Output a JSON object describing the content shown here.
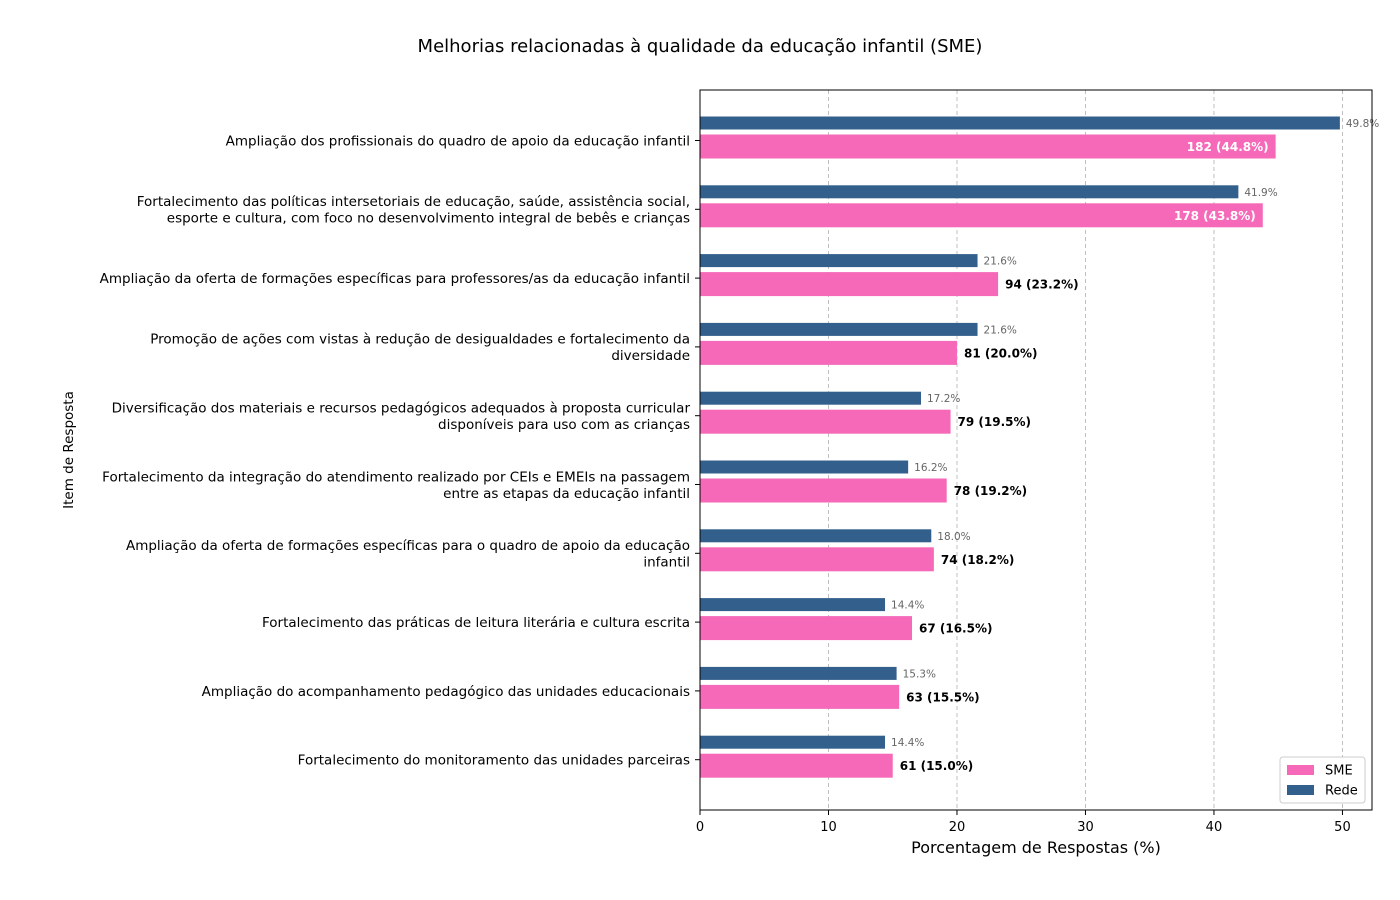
{
  "chart_data": {
    "type": "bar",
    "orientation": "horizontal",
    "title": "Melhorias relacionadas à qualidade da educação infantil (SME)",
    "xlabel": "Porcentagem de Respostas (%)",
    "ylabel": "Item de Resposta",
    "xlim": [
      0,
      52.3
    ],
    "xticks": [
      0,
      10,
      20,
      30,
      40,
      50
    ],
    "grid": "x-dashed",
    "legend_position": "lower-right",
    "categories": [
      [
        "Ampliação dos profissionais do quadro de apoio da educação infantil"
      ],
      [
        "Fortalecimento das políticas intersetoriais de educação, saúde, assistência social,",
        "esporte e cultura, com foco no desenvolvimento integral de bebês e crianças"
      ],
      [
        "Ampliação da oferta de formações específicas para professores/as da educação infantil"
      ],
      [
        "Promoção de ações com vistas à redução de desigualdades e fortalecimento da",
        "diversidade"
      ],
      [
        "Diversificação dos materiais e recursos pedagógicos adequados à proposta curricular",
        "disponíveis para uso com as crianças"
      ],
      [
        "Fortalecimento da integração do atendimento realizado por CEIs e EMEIs na passagem",
        "entre as etapas da educação infantil"
      ],
      [
        "Ampliação da oferta de formações específicas para o quadro de apoio da educação",
        "infantil"
      ],
      [
        "Fortalecimento das práticas de leitura literária e cultura escrita"
      ],
      [
        "Ampliação do acompanhamento pedagógico das unidades educacionais"
      ],
      [
        "Fortalecimento do monitoramento das unidades parceiras"
      ]
    ],
    "series": [
      {
        "name": "SME",
        "color": "#f569b8",
        "values": [
          44.8,
          43.8,
          23.2,
          20.0,
          19.5,
          19.2,
          18.2,
          16.5,
          15.5,
          15.0
        ],
        "counts": [
          182,
          178,
          94,
          81,
          79,
          78,
          74,
          67,
          63,
          61
        ],
        "labels": [
          "182 (44.8%)",
          "178 (43.8%)",
          "94 (23.2%)",
          "81 (20.0%)",
          "79 (19.5%)",
          "78 (19.2%)",
          "74 (18.2%)",
          "67 (16.5%)",
          "63 (15.5%)",
          "61 (15.0%)"
        ]
      },
      {
        "name": "Rede",
        "color": "#335f8c",
        "values": [
          49.8,
          41.9,
          21.6,
          21.6,
          17.2,
          16.2,
          18.0,
          14.4,
          15.3,
          14.4
        ],
        "labels": [
          "49.8%",
          "41.9%",
          "21.6%",
          "21.6%",
          "17.2%",
          "16.2%",
          "18.0%",
          "14.4%",
          "15.3%",
          "14.4%"
        ]
      }
    ]
  }
}
